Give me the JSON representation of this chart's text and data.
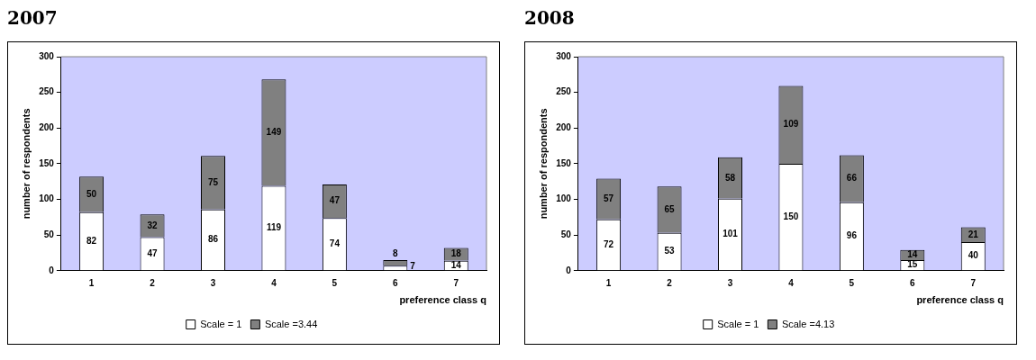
{
  "chart_data": [
    {
      "type": "bar",
      "title": "2007",
      "xlabel": "preference class q",
      "ylabel": "number of respondents",
      "categories": [
        "1",
        "2",
        "3",
        "4",
        "5",
        "6",
        "7"
      ],
      "stacked": true,
      "data_labels": true,
      "legend": "bottom",
      "grid": false,
      "ylim": [
        0,
        300
      ],
      "yticks": [
        0,
        50,
        100,
        150,
        200,
        250,
        300
      ],
      "series": [
        {
          "name": "Scale = 1",
          "color": "#ffffff",
          "values": [
            82,
            47,
            86,
            119,
            74,
            7,
            14
          ]
        },
        {
          "name": "Scale =3.44",
          "color": "#808080",
          "values": [
            50,
            32,
            75,
            149,
            47,
            8,
            18
          ]
        }
      ]
    },
    {
      "type": "bar",
      "title": "2008",
      "xlabel": "preference class q",
      "ylabel": "number of respondents",
      "categories": [
        "1",
        "2",
        "3",
        "4",
        "5",
        "6",
        "7"
      ],
      "stacked": true,
      "data_labels": true,
      "legend": "bottom",
      "grid": false,
      "ylim": [
        0,
        300
      ],
      "yticks": [
        0,
        50,
        100,
        150,
        200,
        250,
        300
      ],
      "series": [
        {
          "name": "Scale = 1",
          "color": "#ffffff",
          "values": [
            72,
            53,
            101,
            150,
            96,
            15,
            40
          ]
        },
        {
          "name": "Scale =4.13",
          "color": "#808080",
          "values": [
            57,
            65,
            58,
            109,
            66,
            14,
            21
          ]
        }
      ]
    }
  ]
}
